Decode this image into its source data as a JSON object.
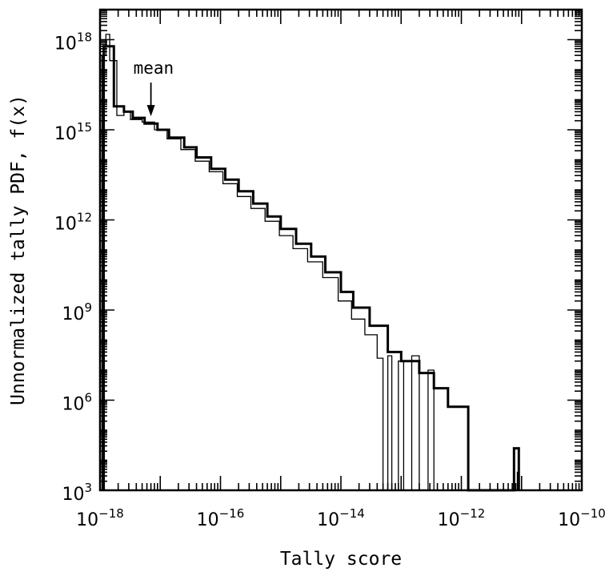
{
  "chart_data": {
    "type": "line",
    "xlabel": "Tally score",
    "ylabel": "Unnormalized tally PDF, f(x)",
    "xscale": "log",
    "yscale": "log",
    "xlim": [
      1e-18,
      1e-10
    ],
    "ylim": [
      1000.0,
      1e+19
    ],
    "x_ticks": [
      {
        "value": 1e-18,
        "base": "10",
        "exp": "−18"
      },
      {
        "value": 1e-16,
        "base": "10",
        "exp": "−16"
      },
      {
        "value": 1e-14,
        "base": "10",
        "exp": "−14"
      },
      {
        "value": 1e-12,
        "base": "10",
        "exp": "−12"
      },
      {
        "value": 1e-10,
        "base": "10",
        "exp": "−10"
      }
    ],
    "y_ticks": [
      {
        "value": 1000.0,
        "base": "10",
        "exp": "3"
      },
      {
        "value": 1000000.0,
        "base": "10",
        "exp": "6"
      },
      {
        "value": 1000000000.0,
        "base": "10",
        "exp": "9"
      },
      {
        "value": 1000000000000.0,
        "base": "10",
        "exp": "12"
      },
      {
        "value": 1000000000000000.0,
        "base": "10",
        "exp": "15"
      },
      {
        "value": 1e+18,
        "base": "10",
        "exp": "18"
      }
    ],
    "annotations": [
      {
        "text": "mean",
        "x": 7e-18,
        "y": 2500000000000000.0
      }
    ],
    "series": [
      {
        "style": "thick",
        "points": [
          [
            1.15e-18,
            1000.0
          ],
          [
            1.15e-18,
            6e+17
          ],
          [
            1.7e-18,
            6e+17
          ],
          [
            1.7e-18,
            6000000000000000.0
          ],
          [
            2.5e-18,
            6000000000000000.0
          ],
          [
            2.5e-18,
            4000000000000000.0
          ],
          [
            3.5e-18,
            4000000000000000.0
          ],
          [
            3.5e-18,
            2500000000000000.0
          ],
          [
            5.5e-18,
            2500000000000000.0
          ],
          [
            5.5e-18,
            1600000000000000.0
          ],
          [
            9e-18,
            1600000000000000.0
          ],
          [
            9e-18,
            1000000000000000.0
          ],
          [
            1.4e-17,
            1000000000000000.0
          ],
          [
            1.4e-17,
            550000000000000.0
          ],
          [
            2.5e-17,
            550000000000000.0
          ],
          [
            2.5e-17,
            260000000000000.0
          ],
          [
            4e-17,
            260000000000000.0
          ],
          [
            4e-17,
            120000000000000.0
          ],
          [
            7e-17,
            120000000000000.0
          ],
          [
            7e-17,
            50000000000000.0
          ],
          [
            1.2e-16,
            50000000000000.0
          ],
          [
            1.2e-16,
            22000000000000.0
          ],
          [
            2e-16,
            22000000000000.0
          ],
          [
            2e-16,
            9000000000000.0
          ],
          [
            3.5e-16,
            9000000000000.0
          ],
          [
            3.5e-16,
            3500000000000.0
          ],
          [
            6e-16,
            3500000000000.0
          ],
          [
            6e-16,
            1300000000000.0
          ],
          [
            1e-15,
            1300000000000.0
          ],
          [
            1e-15,
            500000000000.0
          ],
          [
            1.8e-15,
            500000000000.0
          ],
          [
            1.8e-15,
            160000000000.0
          ],
          [
            3.2e-15,
            160000000000.0
          ],
          [
            3.2e-15,
            60000000000.0
          ],
          [
            5.5e-15,
            60000000000.0
          ],
          [
            5.5e-15,
            18000000000.0
          ],
          [
            1e-14,
            18000000000.0
          ],
          [
            1e-14,
            4000000000.0
          ],
          [
            1.6e-14,
            4000000000.0
          ],
          [
            1.6e-14,
            1200000000.0
          ],
          [
            3e-14,
            1200000000.0
          ],
          [
            3e-14,
            300000000.0
          ],
          [
            6e-14,
            300000000.0
          ],
          [
            6e-14,
            40000000.0
          ],
          [
            1e-13,
            40000000.0
          ],
          [
            1e-13,
            20000000.0
          ],
          [
            2e-13,
            20000000.0
          ],
          [
            2e-13,
            8000000.0
          ],
          [
            3.5e-13,
            8000000.0
          ],
          [
            3.5e-13,
            2500000.0
          ],
          [
            6e-13,
            2500000.0
          ],
          [
            6e-13,
            600000.0
          ],
          [
            1.3e-12,
            600000.0
          ],
          [
            1.3e-12,
            1000.0
          ],
          [
            7.5e-12,
            1000.0
          ],
          [
            7.5e-12,
            25000.0
          ],
          [
            9e-12,
            25000.0
          ],
          [
            9e-12,
            1000.0
          ]
        ]
      },
      {
        "style": "thin",
        "points": [
          [
            1.08e-18,
            1000.0
          ],
          [
            1.08e-18,
            3e+17
          ],
          [
            1.25e-18,
            3e+17
          ],
          [
            1.25e-18,
            1.5e+18
          ],
          [
            1.45e-18,
            1.5e+18
          ],
          [
            1.45e-18,
            2e+17
          ],
          [
            1.9e-18,
            2e+17
          ],
          [
            1.9e-18,
            3000000000000000.0
          ],
          [
            2.5e-18,
            3000000000000000.0
          ],
          [
            2.5e-18,
            4000000000000000.0
          ],
          [
            3.2e-18,
            4000000000000000.0
          ],
          [
            3.2e-18,
            2200000000000000.0
          ],
          [
            5e-18,
            2200000000000000.0
          ],
          [
            5e-18,
            1800000000000000.0
          ],
          [
            8e-18,
            1800000000000000.0
          ],
          [
            8e-18,
            1000000000000000.0
          ],
          [
            1.3e-17,
            1000000000000000.0
          ],
          [
            1.3e-17,
            500000000000000.0
          ],
          [
            2.2e-17,
            500000000000000.0
          ],
          [
            2.2e-17,
            220000000000000.0
          ],
          [
            3.8e-17,
            220000000000000.0
          ],
          [
            3.8e-17,
            90000000000000.0
          ],
          [
            6.5e-17,
            90000000000000.0
          ],
          [
            6.5e-17,
            40000000000000.0
          ],
          [
            1.1e-16,
            40000000000000.0
          ],
          [
            1.1e-16,
            16000000000000.0
          ],
          [
            1.9e-16,
            16000000000000.0
          ],
          [
            1.9e-16,
            6000000000000.0
          ],
          [
            3.2e-16,
            6000000000000.0
          ],
          [
            3.2e-16,
            2400000000000.0
          ],
          [
            5.5e-16,
            2400000000000.0
          ],
          [
            5.5e-16,
            900000000000.0
          ],
          [
            9.5e-16,
            900000000000.0
          ],
          [
            9.5e-16,
            300000000000.0
          ],
          [
            1.6e-15,
            300000000000.0
          ],
          [
            1.6e-15,
            110000000000.0
          ],
          [
            2.8e-15,
            110000000000.0
          ],
          [
            2.8e-15,
            40000000000.0
          ],
          [
            5e-15,
            40000000000.0
          ],
          [
            5e-15,
            12000000000.0
          ],
          [
            9e-15,
            12000000000.0
          ],
          [
            9e-15,
            2000000000.0
          ],
          [
            1.5e-14,
            2000000000.0
          ],
          [
            1.5e-14,
            500000000.0
          ],
          [
            2.5e-14,
            500000000.0
          ],
          [
            2.5e-14,
            150000000.0
          ],
          [
            4e-14,
            150000000.0
          ],
          [
            4e-14,
            25000000.0
          ],
          [
            5e-14,
            25000000.0
          ],
          [
            5e-14,
            1000.0
          ],
          [
            6e-14,
            1000.0
          ],
          [
            6e-14,
            30000000.0
          ],
          [
            7e-14,
            30000000.0
          ],
          [
            7e-14,
            1000.0
          ],
          [
            9e-14,
            1000.0
          ],
          [
            9e-14,
            20000000.0
          ],
          [
            1.1e-13,
            20000000.0
          ],
          [
            1.1e-13,
            1000.0
          ],
          [
            1.5e-13,
            1000.0
          ],
          [
            1.5e-13,
            30000000.0
          ],
          [
            2e-13,
            30000000.0
          ],
          [
            2e-13,
            1000.0
          ],
          [
            2.8e-13,
            1000.0
          ],
          [
            2.8e-13,
            10000000.0
          ],
          [
            3.5e-13,
            10000000.0
          ],
          [
            3.5e-13,
            1000.0
          ],
          [
            8.5e-12,
            1000.0
          ],
          [
            8.5e-12,
            4000.0
          ],
          [
            9e-12,
            4000.0
          ],
          [
            9e-12,
            1000.0
          ]
        ]
      }
    ],
    "grid": false
  }
}
